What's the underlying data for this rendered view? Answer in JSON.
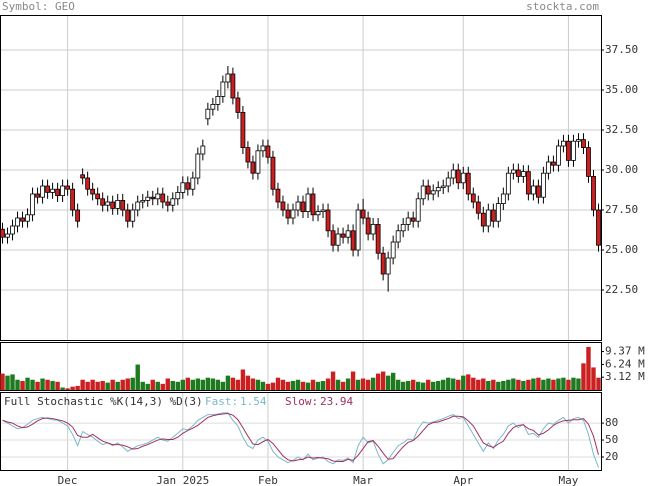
{
  "header": {
    "symbol": "Symbol: GEO",
    "site": "stockta.com"
  },
  "chart_data": [
    {
      "type": "candlestick",
      "categories": [
        null,
        null,
        null,
        null,
        null,
        null,
        null,
        null,
        null,
        null,
        null,
        null,
        null,
        "Dec",
        null,
        null,
        null,
        null,
        null,
        null,
        null,
        null,
        null,
        null,
        null,
        null,
        null,
        null,
        null,
        null,
        null,
        null,
        null,
        null,
        null,
        null,
        "Jan 2025",
        null,
        null,
        null,
        null,
        null,
        null,
        null,
        null,
        null,
        null,
        null,
        null,
        null,
        null,
        null,
        null,
        "Feb",
        null,
        null,
        null,
        null,
        null,
        null,
        null,
        null,
        null,
        null,
        null,
        null,
        null,
        null,
        null,
        null,
        null,
        null,
        "Mar",
        null,
        null,
        null,
        null,
        null,
        null,
        null,
        null,
        null,
        null,
        null,
        null,
        null,
        null,
        null,
        null,
        null,
        null,
        null,
        "Apr",
        null,
        null,
        null,
        null,
        null,
        null,
        null,
        null,
        null,
        null,
        null,
        null,
        null,
        null,
        null,
        null,
        null,
        null,
        null,
        null,
        "May",
        null,
        null,
        null,
        null,
        null,
        null
      ],
      "open": [
        26.3,
        25.8,
        26.0,
        26.5,
        27.0,
        26.8,
        27.2,
        28.5,
        28.3,
        29.0,
        28.6,
        28.8,
        28.4,
        29.0,
        28.8,
        27.5,
        29.7,
        29.5,
        28.8,
        28.5,
        28.2,
        27.8,
        28.0,
        27.6,
        28.1,
        27.5,
        26.8,
        27.5,
        28.0,
        28.1,
        28.3,
        28.2,
        28.5,
        28.0,
        27.8,
        28.2,
        28.6,
        29.2,
        28.8,
        29.5,
        31.0,
        33.2,
        33.8,
        34.1,
        34.6,
        35.5,
        36.0,
        34.5,
        33.6,
        31.4,
        30.5,
        29.8,
        31.2,
        31.5,
        30.8,
        28.8,
        28.0,
        27.5,
        27.0,
        27.5,
        28.0,
        27.4,
        28.5,
        27.2,
        27.4,
        27.5,
        26.2,
        25.3,
        26.0,
        25.8,
        26.2,
        25.0,
        27.5,
        27.0,
        26.0,
        26.6,
        24.8,
        23.5,
        24.5,
        25.5,
        26.2,
        26.6,
        27.0,
        26.8,
        28.2,
        29.0,
        28.5,
        28.7,
        28.9,
        29.0,
        29.5,
        30.0,
        29.2,
        29.8,
        28.5,
        28.0,
        27.3,
        26.5,
        27.5,
        26.8,
        27.9,
        28.5,
        29.8,
        30.0,
        29.6,
        29.9,
        28.5,
        29.0,
        28.3,
        29.8,
        30.5,
        30.3,
        31.5,
        31.8,
        30.6,
        31.8,
        31.9,
        31.4,
        29.6,
        27.5
      ],
      "high": [
        26.7,
        26.4,
        26.9,
        27.4,
        27.4,
        27.6,
        28.9,
        28.9,
        29.4,
        29.4,
        29.2,
        29.2,
        29.4,
        29.4,
        29.2,
        27.9,
        30.1,
        29.9,
        29.2,
        28.9,
        28.6,
        28.4,
        28.4,
        28.5,
        28.5,
        27.9,
        27.9,
        28.4,
        28.5,
        28.7,
        28.7,
        28.9,
        28.9,
        28.4,
        28.6,
        29.0,
        29.6,
        29.6,
        29.9,
        31.4,
        31.9,
        34.2,
        34.5,
        35.0,
        35.9,
        36.5,
        36.4,
        34.9,
        34.0,
        31.8,
        30.9,
        31.6,
        31.9,
        31.9,
        31.2,
        29.2,
        28.4,
        27.9,
        27.9,
        28.4,
        28.4,
        28.9,
        28.9,
        27.8,
        27.9,
        27.9,
        26.6,
        26.4,
        26.4,
        26.6,
        26.6,
        27.9,
        28.2,
        27.4,
        27.0,
        27.0,
        25.2,
        24.9,
        25.9,
        26.6,
        27.0,
        27.4,
        27.4,
        28.6,
        29.4,
        29.4,
        29.1,
        29.3,
        29.4,
        29.9,
        30.4,
        30.4,
        30.2,
        30.2,
        28.9,
        28.4,
        27.7,
        27.9,
        27.9,
        28.3,
        28.9,
        30.2,
        30.4,
        30.4,
        30.3,
        30.3,
        29.4,
        29.4,
        30.2,
        30.9,
        30.9,
        31.9,
        32.2,
        32.2,
        32.2,
        32.3,
        32.3,
        31.8,
        30.0,
        27.9
      ],
      "low": [
        25.4,
        25.4,
        25.6,
        26.1,
        26.4,
        26.4,
        26.8,
        27.9,
        27.9,
        28.2,
        28.2,
        28.0,
        28.0,
        28.4,
        27.1,
        26.4,
        29.1,
        28.4,
        28.1,
        27.8,
        27.4,
        27.4,
        27.2,
        27.2,
        27.1,
        26.4,
        26.4,
        27.1,
        27.6,
        27.7,
        27.8,
        27.8,
        27.6,
        27.4,
        27.4,
        27.8,
        28.2,
        28.4,
        28.4,
        29.1,
        30.6,
        32.8,
        33.4,
        33.7,
        34.2,
        35.1,
        34.1,
        33.2,
        31.0,
        30.1,
        29.4,
        29.4,
        30.8,
        30.4,
        28.4,
        27.6,
        27.1,
        26.6,
        26.6,
        27.1,
        27.0,
        27.0,
        26.8,
        26.8,
        27.0,
        25.8,
        24.9,
        24.9,
        25.4,
        25.4,
        24.6,
        24.6,
        26.6,
        25.6,
        25.6,
        24.4,
        23.1,
        22.4,
        24.1,
        25.1,
        25.8,
        26.2,
        26.4,
        26.4,
        27.8,
        28.1,
        28.1,
        28.3,
        28.5,
        28.6,
        29.1,
        28.8,
        28.8,
        28.1,
        27.6,
        26.9,
        26.1,
        26.1,
        26.4,
        26.4,
        27.5,
        28.1,
        29.4,
        29.2,
        29.2,
        28.1,
        28.1,
        27.9,
        27.9,
        29.4,
        29.9,
        29.9,
        31.1,
        30.2,
        30.2,
        31.4,
        31.0,
        29.2,
        27.1,
        24.9
      ],
      "close": [
        25.8,
        26.0,
        26.5,
        27.0,
        26.8,
        27.2,
        28.5,
        28.3,
        29.0,
        28.6,
        28.8,
        28.4,
        29.0,
        28.8,
        27.5,
        26.8,
        29.5,
        28.8,
        28.5,
        28.2,
        27.8,
        28.0,
        27.6,
        28.1,
        27.5,
        26.8,
        27.5,
        28.0,
        28.1,
        28.3,
        28.2,
        28.5,
        28.0,
        27.8,
        28.2,
        28.6,
        29.2,
        28.8,
        29.5,
        31.0,
        31.5,
        33.8,
        34.1,
        34.6,
        35.5,
        36.0,
        34.5,
        33.6,
        31.4,
        30.5,
        29.8,
        31.2,
        31.5,
        30.8,
        28.8,
        28.0,
        27.5,
        27.0,
        27.5,
        28.0,
        27.4,
        28.5,
        27.2,
        27.4,
        27.5,
        26.2,
        25.3,
        26.0,
        25.8,
        26.2,
        25.0,
        27.5,
        27.0,
        26.0,
        26.6,
        24.8,
        23.5,
        24.5,
        25.5,
        26.2,
        26.6,
        27.0,
        26.8,
        28.2,
        29.0,
        28.5,
        28.7,
        28.9,
        29.0,
        29.5,
        30.0,
        29.2,
        29.8,
        28.5,
        28.0,
        27.3,
        26.5,
        27.5,
        26.8,
        27.9,
        28.5,
        29.8,
        30.0,
        29.6,
        29.9,
        28.5,
        29.0,
        28.3,
        29.8,
        30.5,
        30.3,
        31.5,
        31.8,
        30.6,
        31.8,
        31.9,
        31.4,
        29.6,
        27.5,
        25.3
      ],
      "ylim": [
        19.375,
        39.6875
      ],
      "yticks": [
        {
          "value": 22.5,
          "label": "22.50"
        },
        {
          "value": 25,
          "label": "25.00"
        },
        {
          "value": 27.5,
          "label": "27.50"
        },
        {
          "value": 30,
          "label": "30.00"
        },
        {
          "value": 32.5,
          "label": "32.50"
        },
        {
          "value": 35,
          "label": "35.00"
        },
        {
          "value": 37.5,
          "label": "37.50"
        }
      ],
      "grid": true,
      "up_color": "#ffffff",
      "down_color": "#cc2020"
    },
    {
      "type": "bar",
      "values": [
        4.0,
        3.5,
        3.8,
        2.5,
        2.2,
        3.0,
        2.5,
        2.0,
        2.8,
        2.5,
        2.2,
        2.0,
        0.6,
        0.4,
        0.8,
        1.0,
        2.5,
        2.0,
        2.5,
        2.0,
        2.2,
        1.8,
        2.5,
        2.0,
        2.5,
        2.8,
        3.0,
        6.2,
        2.0,
        1.5,
        2.5,
        2.0,
        1.5,
        2.8,
        2.2,
        2.0,
        2.5,
        3.0,
        2.5,
        2.8,
        2.5,
        3.0,
        2.8,
        2.5,
        2.0,
        3.5,
        3.0,
        2.5,
        5.0,
        3.5,
        2.8,
        2.5,
        2.0,
        1.5,
        1.8,
        3.0,
        2.5,
        2.0,
        2.2,
        2.5,
        2.0,
        1.8,
        2.5,
        2.0,
        2.2,
        2.8,
        4.5,
        2.5,
        2.0,
        2.8,
        4.5,
        2.5,
        2.8,
        2.5,
        3.0,
        4.0,
        4.5,
        3.5,
        4.2,
        2.5,
        2.0,
        2.2,
        2.5,
        2.0,
        1.8,
        2.5,
        2.0,
        2.2,
        2.5,
        3.0,
        2.8,
        2.5,
        3.5,
        3.8,
        3.0,
        2.5,
        2.8,
        2.2,
        2.5,
        2.0,
        2.2,
        2.5,
        2.8,
        2.5,
        2.2,
        2.5,
        2.8,
        3.0,
        2.5,
        2.8,
        2.5,
        2.8,
        3.0,
        2.5,
        3.0,
        2.8,
        6.5,
        10.5,
        5.5,
        3.0
      ],
      "ylim": [
        0,
        11.7
      ],
      "yticks": [
        {
          "value": 3.12,
          "label": "3.12 M"
        },
        {
          "value": 6.24,
          "label": "6.24 M"
        },
        {
          "value": 9.37,
          "label": "9.37 M"
        }
      ],
      "up_color": "#1e7a1e",
      "down_color": "#cc2020"
    },
    {
      "type": "line",
      "title": "Full Stochastic %K(14,3) %D(3)",
      "series": [
        {
          "name": "Fast:",
          "color": "#7ab8c8",
          "values": [
            85,
            80,
            75,
            70,
            72,
            78,
            85,
            88,
            90,
            88,
            86,
            85,
            80,
            75,
            60,
            40,
            65,
            60,
            55,
            48,
            42,
            45,
            40,
            45,
            38,
            30,
            35,
            40,
            42,
            45,
            50,
            55,
            50,
            48,
            55,
            62,
            70,
            68,
            75,
            85,
            90,
            95,
            95,
            96,
            98,
            98,
            85,
            75,
            55,
            40,
            35,
            50,
            55,
            48,
            30,
            20,
            15,
            10,
            14,
            20,
            15,
            25,
            15,
            18,
            20,
            12,
            8,
            15,
            14,
            18,
            10,
            40,
            55,
            45,
            48,
            25,
            8,
            15,
            28,
            40,
            45,
            52,
            50,
            70,
            82,
            80,
            82,
            85,
            88,
            92,
            95,
            88,
            90,
            75,
            60,
            45,
            30,
            45,
            35,
            50,
            60,
            75,
            80,
            72,
            78,
            60,
            62,
            55,
            70,
            80,
            78,
            85,
            90,
            80,
            88,
            90,
            85,
            60,
            25,
            1.54
          ]
        },
        {
          "name": "Slow:",
          "color": "#a03060",
          "values": [
            85,
            82,
            80,
            75,
            72,
            73,
            78,
            84,
            88,
            89,
            88,
            86,
            84,
            80,
            73,
            58,
            55,
            55,
            60,
            54,
            48,
            45,
            42,
            42,
            41,
            38,
            34,
            35,
            39,
            42,
            46,
            50,
            52,
            51,
            51,
            55,
            62,
            67,
            71,
            76,
            83,
            90,
            93,
            95,
            96,
            97,
            94,
            86,
            72,
            57,
            43,
            42,
            47,
            51,
            44,
            33,
            22,
            15,
            13,
            15,
            16,
            20,
            18,
            19,
            18,
            17,
            13,
            12,
            12,
            16,
            14,
            23,
            35,
            47,
            49,
            39,
            27,
            16,
            17,
            28,
            38,
            46,
            49,
            57,
            67,
            77,
            81,
            82,
            85,
            88,
            92,
            92,
            91,
            84,
            75,
            60,
            45,
            40,
            37,
            43,
            48,
            62,
            72,
            76,
            77,
            70,
            67,
            59,
            62,
            68,
            76,
            81,
            84,
            85,
            86,
            86,
            88,
            78,
            57,
            23.94
          ]
        }
      ],
      "ylim": [
        -3,
        135
      ],
      "yticks": [
        20,
        50,
        80
      ]
    }
  ]
}
